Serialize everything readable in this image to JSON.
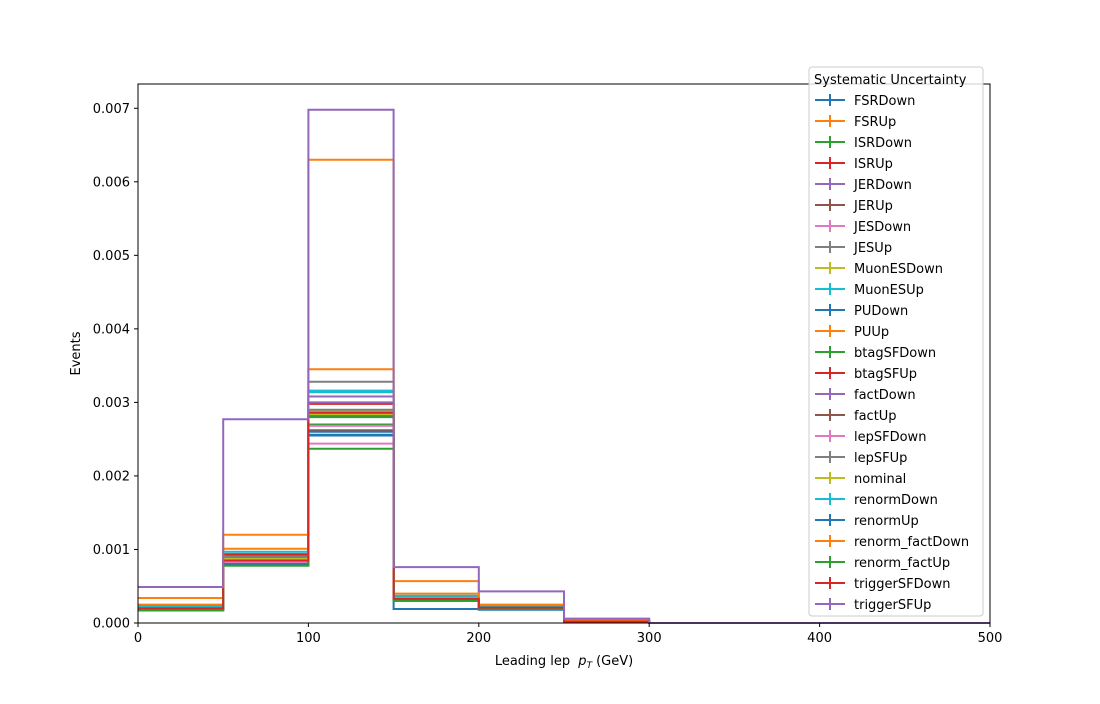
{
  "chart_data": {
    "type": "step",
    "xlabel": "Leading lep",
    "xlabel_symbol": "p",
    "xlabel_subscript": "T",
    "xlabel_unit": "(GeV)",
    "ylabel": "Events",
    "xlim": [
      0,
      500
    ],
    "ylim": [
      0,
      0.00733
    ],
    "x_ticks": [
      0,
      100,
      200,
      300,
      400,
      500
    ],
    "x_tick_labels": [
      "0",
      "100",
      "200",
      "300",
      "400",
      "500"
    ],
    "y_ticks": [
      0,
      0.001,
      0.002,
      0.003,
      0.004,
      0.005,
      0.006,
      0.007
    ],
    "y_tick_labels": [
      "0.000",
      "0.001",
      "0.002",
      "0.003",
      "0.004",
      "0.005",
      "0.006",
      "0.007"
    ],
    "grid": false,
    "legend": {
      "title": "Systematic Uncertainty",
      "placement": "upper-right"
    },
    "bin_edges": [
      0,
      50,
      100,
      150,
      200,
      250,
      300,
      350,
      400,
      450,
      500
    ],
    "series": [
      {
        "name": "FSRDown",
        "color": "#1f77b4",
        "values": [
          0.00017,
          0.00079,
          0.00255,
          0.00019,
          0.00018,
          1e-05,
          0,
          0,
          0,
          0
        ]
      },
      {
        "name": "FSRUp",
        "color": "#ff7f0e",
        "values": [
          0.00022,
          0.00092,
          0.00288,
          0.00035,
          0.00022,
          2e-05,
          0,
          0,
          0,
          0
        ]
      },
      {
        "name": "ISRDown",
        "color": "#2ca02c",
        "values": [
          0.00019,
          0.00082,
          0.0027,
          0.00031,
          0.0002,
          2e-05,
          0,
          0,
          0,
          0
        ]
      },
      {
        "name": "ISRUp",
        "color": "#d62728",
        "values": [
          0.0002,
          0.00085,
          0.00285,
          0.00032,
          0.00021,
          2e-05,
          0,
          0,
          0,
          0
        ]
      },
      {
        "name": "JERDown",
        "color": "#9467bd",
        "values": [
          0.0002,
          0.00086,
          0.00308,
          0.00033,
          0.00021,
          2e-05,
          0,
          0,
          0,
          0
        ]
      },
      {
        "name": "JERUp",
        "color": "#8c564b",
        "values": [
          0.0002,
          0.00084,
          0.00262,
          0.00032,
          0.0002,
          2e-05,
          0,
          0,
          0,
          0
        ]
      },
      {
        "name": "JESDown",
        "color": "#e377c2",
        "values": [
          0.00019,
          0.00083,
          0.00244,
          0.00031,
          0.0002,
          2e-05,
          0,
          0,
          0,
          0
        ]
      },
      {
        "name": "JESUp",
        "color": "#7f7f7f",
        "values": [
          0.00022,
          0.00094,
          0.00328,
          0.00036,
          0.00022,
          3e-05,
          0,
          0,
          0,
          0
        ]
      },
      {
        "name": "MuonESDown",
        "color": "#bcbd22",
        "values": [
          0.00021,
          0.00087,
          0.00289,
          0.00033,
          0.00021,
          2e-05,
          0,
          0,
          0,
          0
        ]
      },
      {
        "name": "MuonESUp",
        "color": "#17becf",
        "values": [
          0.00021,
          0.00088,
          0.00316,
          0.00034,
          0.00021,
          2e-05,
          0,
          0,
          0,
          0
        ]
      },
      {
        "name": "PUDown",
        "color": "#1f77b4",
        "values": [
          0.00021,
          0.00088,
          0.00256,
          0.00034,
          0.00021,
          2e-05,
          0,
          0,
          0,
          0
        ]
      },
      {
        "name": "PUUp",
        "color": "#ff7f0e",
        "values": [
          0.00025,
          0.00101,
          0.00345,
          0.0004,
          0.00024,
          3e-05,
          0,
          0,
          0,
          0
        ]
      },
      {
        "name": "btagSFDown",
        "color": "#2ca02c",
        "values": [
          0.00017,
          0.00078,
          0.00237,
          0.0003,
          0.00019,
          2e-05,
          0,
          0,
          0,
          0
        ]
      },
      {
        "name": "btagSFUp",
        "color": "#d62728",
        "values": [
          0.00023,
          0.00093,
          0.00298,
          0.00036,
          0.00022,
          2e-05,
          0,
          0,
          0,
          0
        ]
      },
      {
        "name": "factDown",
        "color": "#9467bd",
        "values": [
          0.00021,
          0.00089,
          0.003,
          0.00034,
          0.00021,
          2e-05,
          0,
          0,
          0,
          0
        ]
      },
      {
        "name": "factUp",
        "color": "#8c564b",
        "values": [
          0.0002,
          0.00086,
          0.00282,
          0.00033,
          0.00021,
          2e-05,
          0,
          0,
          0,
          0
        ]
      },
      {
        "name": "lepSFDown",
        "color": "#e377c2",
        "values": [
          0.00019,
          0.00083,
          0.00268,
          0.00031,
          0.0002,
          2e-05,
          0,
          0,
          0,
          0
        ]
      },
      {
        "name": "lepSFUp",
        "color": "#7f7f7f",
        "values": [
          0.00022,
          0.0009,
          0.0029,
          0.00035,
          0.00022,
          2e-05,
          0,
          0,
          0,
          0
        ]
      },
      {
        "name": "nominal",
        "color": "#bcbd22",
        "values": [
          0.00021,
          0.00087,
          0.00284,
          0.00034,
          0.00021,
          2e-05,
          0,
          0,
          0,
          0
        ]
      },
      {
        "name": "renormDown",
        "color": "#17becf",
        "values": [
          0.00023,
          0.00097,
          0.00314,
          0.00037,
          0.00023,
          3e-05,
          0,
          0,
          0,
          0
        ]
      },
      {
        "name": "renormUp",
        "color": "#1f77b4",
        "values": [
          0.00019,
          0.0008,
          0.0026,
          0.00031,
          0.00019,
          2e-05,
          0,
          0,
          0,
          0
        ]
      },
      {
        "name": "renorm_factDown",
        "color": "#ff7f0e",
        "values": [
          0.00034,
          0.0012,
          0.0063,
          0.00057,
          0.00025,
          3e-05,
          0,
          0,
          0,
          0
        ]
      },
      {
        "name": "renorm_factUp",
        "color": "#2ca02c",
        "values": [
          0.00018,
          0.00078,
          0.0028,
          0.0003,
          0.00019,
          2e-05,
          0,
          0,
          0,
          0
        ]
      },
      {
        "name": "triggerSFDown",
        "color": "#d62728",
        "values": [
          0.0002,
          0.00085,
          0.00286,
          0.00033,
          0.00021,
          2e-05,
          0,
          0,
          0,
          0
        ]
      },
      {
        "name": "triggerSFUp",
        "color": "#9467bd",
        "values": [
          0.00049,
          0.00277,
          0.00698,
          0.00076,
          0.00043,
          6e-05,
          0,
          0,
          0,
          0
        ]
      }
    ]
  }
}
